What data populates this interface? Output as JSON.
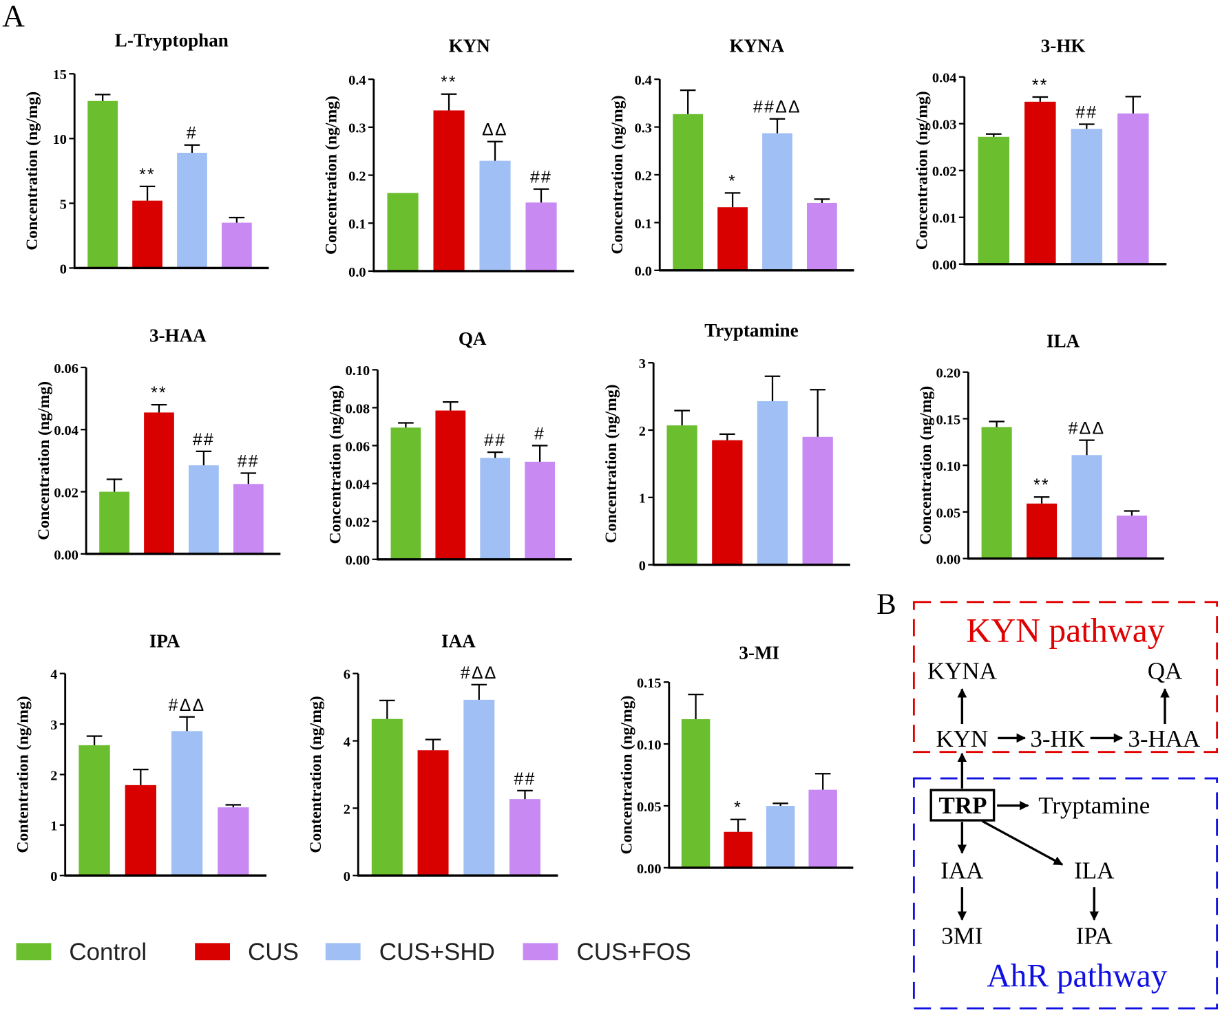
{
  "panel_labels": {
    "a": "A",
    "b": "B"
  },
  "colors": {
    "Control": "#6BBE2E",
    "CUS": "#D90000",
    "CUS+SHD": "#9FBFF5",
    "CUS+FOS": "#C88AF2"
  },
  "legend": [
    "Control",
    "CUS",
    "CUS+SHD",
    "CUS+FOS"
  ],
  "chart_data": [
    {
      "type": "bar",
      "title": "L-Tryptophan",
      "ylabel": "Concentration (ng/mg)",
      "ylim": [
        0,
        15
      ],
      "ticks": [
        "0",
        "5",
        "10",
        "15"
      ],
      "tick_values": [
        0,
        5,
        10,
        15
      ],
      "categories": [
        "Control",
        "CUS",
        "CUS+SHD",
        "CUS+FOS"
      ],
      "values": [
        12.9,
        5.2,
        8.9,
        3.5
      ],
      "errors": [
        0.5,
        1.1,
        0.6,
        0.4
      ],
      "annotations": [
        "",
        "**",
        "#",
        ""
      ]
    },
    {
      "type": "bar",
      "title": "KYN",
      "ylabel": "Concentration (ng/mg)",
      "ylim": [
        0,
        0.4
      ],
      "ticks": [
        "0.0",
        "0.1",
        "0.2",
        "0.3",
        "0.4"
      ],
      "tick_values": [
        0,
        0.1,
        0.2,
        0.3,
        0.4
      ],
      "categories": [
        "Control",
        "CUS",
        "CUS+SHD",
        "CUS+FOS"
      ],
      "values": [
        0.163,
        0.335,
        0.23,
        0.143
      ],
      "errors": [
        0,
        0.034,
        0.04,
        0.028
      ],
      "annotations": [
        "",
        "**",
        "ΔΔ",
        "##"
      ]
    },
    {
      "type": "bar",
      "title": "KYNA",
      "ylabel": "Concentration (ng/mg)",
      "ylim": [
        0,
        0.4
      ],
      "ticks": [
        "0.0",
        "0.1",
        "0.2",
        "0.3",
        "0.4"
      ],
      "tick_values": [
        0,
        0.1,
        0.2,
        0.3,
        0.4
      ],
      "categories": [
        "Control",
        "CUS",
        "CUS+SHD",
        "CUS+FOS"
      ],
      "values": [
        0.327,
        0.132,
        0.287,
        0.141
      ],
      "errors": [
        0.05,
        0.03,
        0.03,
        0.008
      ],
      "annotations": [
        "",
        "*",
        "##ΔΔ",
        ""
      ]
    },
    {
      "type": "bar",
      "title": "3-HK",
      "ylabel": "Concentration (ng/mg)",
      "ylim": [
        0,
        0.04
      ],
      "ticks": [
        "0.00",
        "0.01",
        "0.02",
        "0.03",
        "0.04"
      ],
      "tick_values": [
        0,
        0.01,
        0.02,
        0.03,
        0.04
      ],
      "categories": [
        "Control",
        "CUS",
        "CUS+SHD",
        "CUS+FOS"
      ],
      "values": [
        0.0272,
        0.0347,
        0.0289,
        0.0322
      ],
      "errors": [
        0.0006,
        0.001,
        0.001,
        0.0036
      ],
      "annotations": [
        "",
        "**",
        "##",
        ""
      ]
    },
    {
      "type": "bar",
      "title": "3-HAA",
      "ylabel": "Concentration (ng/mg)",
      "ylim": [
        0,
        0.06
      ],
      "ticks": [
        "0.00",
        "0.02",
        "0.04",
        "0.06"
      ],
      "tick_values": [
        0,
        0.02,
        0.04,
        0.06
      ],
      "categories": [
        "Control",
        "CUS",
        "CUS+SHD",
        "CUS+FOS"
      ],
      "values": [
        0.02,
        0.0455,
        0.0285,
        0.0225
      ],
      "errors": [
        0.004,
        0.0025,
        0.0045,
        0.0035
      ],
      "annotations": [
        "",
        "**",
        "##",
        "##"
      ]
    },
    {
      "type": "bar",
      "title": "QA",
      "ylabel": "Concentration (ng/mg)",
      "ylim": [
        0,
        0.1
      ],
      "ticks": [
        "0.00",
        "0.02",
        "0.04",
        "0.06",
        "0.08",
        "0.10"
      ],
      "tick_values": [
        0,
        0.02,
        0.04,
        0.06,
        0.08,
        0.1
      ],
      "categories": [
        "Control",
        "CUS",
        "CUS+SHD",
        "CUS+FOS"
      ],
      "values": [
        0.0695,
        0.0785,
        0.0535,
        0.0515
      ],
      "errors": [
        0.0025,
        0.0045,
        0.003,
        0.0085
      ],
      "annotations": [
        "",
        "",
        "##",
        "#"
      ]
    },
    {
      "type": "bar",
      "title": "Tryptamine",
      "ylabel": "Concentration (ng/mg)",
      "ylim": [
        0,
        3
      ],
      "ticks": [
        "0",
        "1",
        "2",
        "3"
      ],
      "tick_values": [
        0,
        1,
        2,
        3
      ],
      "categories": [
        "Control",
        "CUS",
        "CUS+SHD",
        "CUS+FOS"
      ],
      "values": [
        2.07,
        1.85,
        2.43,
        1.9
      ],
      "errors": [
        0.22,
        0.09,
        0.37,
        0.7
      ],
      "annotations": [
        "",
        "",
        "",
        ""
      ]
    },
    {
      "type": "bar",
      "title": "ILA",
      "ylabel": "Concentration (ng/mg)",
      "ylim": [
        0,
        0.2
      ],
      "ticks": [
        "0.00",
        "0.05",
        "0.10",
        "0.15",
        "0.20"
      ],
      "tick_values": [
        0,
        0.05,
        0.1,
        0.15,
        0.2
      ],
      "categories": [
        "Control",
        "CUS",
        "CUS+SHD",
        "CUS+FOS"
      ],
      "values": [
        0.141,
        0.059,
        0.111,
        0.046
      ],
      "errors": [
        0.006,
        0.007,
        0.016,
        0.005
      ],
      "annotations": [
        "",
        "**",
        "#ΔΔ",
        ""
      ]
    },
    {
      "type": "bar",
      "title": "IPA",
      "ylabel": "Contentration (ng/mg)",
      "ylim": [
        0,
        4
      ],
      "ticks": [
        "0",
        "1",
        "2",
        "3",
        "4"
      ],
      "tick_values": [
        0,
        1,
        2,
        3,
        4
      ],
      "categories": [
        "Control",
        "CUS",
        "CUS+SHD",
        "CUS+FOS"
      ],
      "values": [
        2.58,
        1.79,
        2.86,
        1.35
      ],
      "errors": [
        0.18,
        0.31,
        0.28,
        0.05
      ],
      "annotations": [
        "",
        "",
        "#ΔΔ",
        ""
      ]
    },
    {
      "type": "bar",
      "title": "IAA",
      "ylabel": "Contentration (ng/mg)",
      "ylim": [
        0,
        6
      ],
      "ticks": [
        "0",
        "2",
        "4",
        "6"
      ],
      "tick_values": [
        0,
        2,
        4,
        6
      ],
      "categories": [
        "Control",
        "CUS",
        "CUS+SHD",
        "CUS+FOS"
      ],
      "values": [
        4.65,
        3.72,
        5.22,
        2.27
      ],
      "errors": [
        0.55,
        0.32,
        0.45,
        0.25
      ],
      "annotations": [
        "",
        "",
        "#ΔΔ",
        "##"
      ]
    },
    {
      "type": "bar",
      "title": "3-MI",
      "ylabel": "Concentration (ng/mg)",
      "ylim": [
        0,
        0.15
      ],
      "ticks": [
        "0.00",
        "0.05",
        "0.10",
        "0.15"
      ],
      "tick_values": [
        0,
        0.05,
        0.1,
        0.15
      ],
      "categories": [
        "Control",
        "CUS",
        "CUS+SHD",
        "CUS+FOS"
      ],
      "values": [
        0.12,
        0.029,
        0.05,
        0.063
      ],
      "errors": [
        0.02,
        0.01,
        0.002,
        0.013
      ],
      "annotations": [
        "",
        "*",
        "",
        ""
      ]
    }
  ],
  "pathway": {
    "kyn_title": "KYN pathway",
    "ahr_title": "AhR pathway",
    "nodes": {
      "kyna": "KYNA",
      "qa": "QA",
      "kyn": "KYN",
      "hk": "3-HK",
      "haa": "3-HAA",
      "trp": "TRP",
      "tryptamine": "Tryptamine",
      "iaa": "IAA",
      "ila": "ILA",
      "mi": "3MI",
      "ipa": "IPA"
    },
    "kyn_color": "#E00000",
    "ahr_color": "#1010E0"
  }
}
